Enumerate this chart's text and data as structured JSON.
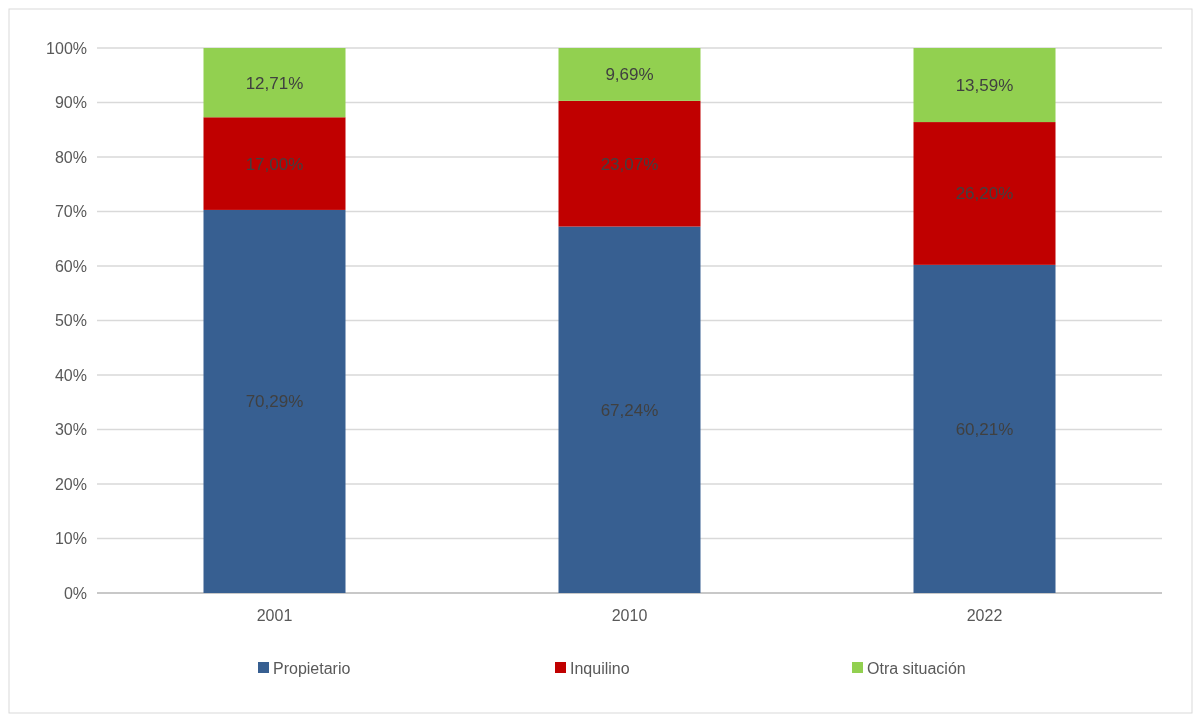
{
  "chart_data": {
    "type": "bar",
    "stacked": true,
    "categories": [
      "2001",
      "2010",
      "2022"
    ],
    "series": [
      {
        "name": "Propietario",
        "color": "#375f91",
        "values": [
          70.29,
          67.24,
          60.21
        ],
        "value_labels": [
          "70,29%",
          "67,24%",
          "60,21%"
        ]
      },
      {
        "name": "Inquilino",
        "color": "#c00000",
        "values": [
          17.0,
          23.07,
          26.2
        ],
        "value_labels": [
          "17,00%",
          "23,07%",
          "26,20%"
        ]
      },
      {
        "name": "Otra situación",
        "color": "#92d050",
        "values": [
          12.71,
          9.69,
          13.59
        ],
        "value_labels": [
          "12,71%",
          "9,69%",
          "13,59%"
        ]
      }
    ],
    "ylim": [
      0,
      100
    ],
    "yticks": [
      {
        "value": 0,
        "label": "0%"
      },
      {
        "value": 10,
        "label": "10%"
      },
      {
        "value": 20,
        "label": "20%"
      },
      {
        "value": 30,
        "label": "30%"
      },
      {
        "value": 40,
        "label": "40%"
      },
      {
        "value": 50,
        "label": "50%"
      },
      {
        "value": 60,
        "label": "60%"
      },
      {
        "value": 70,
        "label": "70%"
      },
      {
        "value": 80,
        "label": "80%"
      },
      {
        "value": 90,
        "label": "90%"
      },
      {
        "value": 100,
        "label": "100%"
      }
    ],
    "grid": "y",
    "legend": "bottom"
  }
}
